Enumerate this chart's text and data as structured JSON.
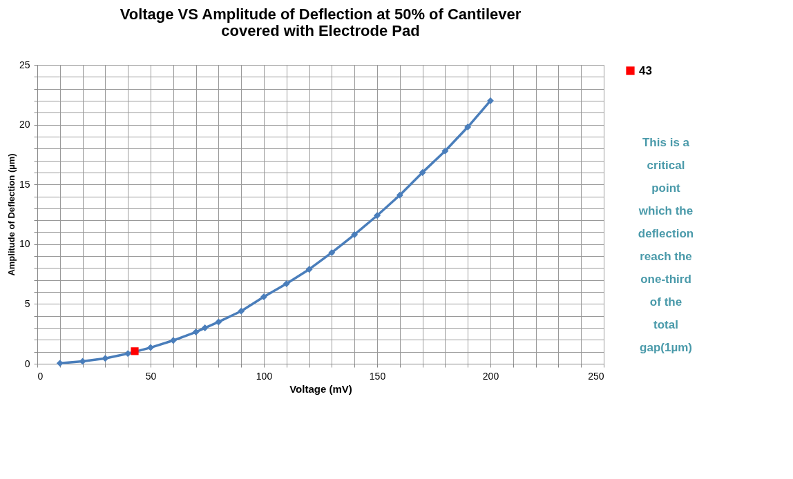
{
  "chart_data": {
    "type": "line",
    "title": "Voltage VS Amplitude of Deflection at 50% of Cantilever covered with Electrode Pad",
    "xlabel": "Voltage (mV)",
    "ylabel": "Amplitude of Deflection  (µm)",
    "series": [
      {
        "color": "#4a7ebb",
        "marker": "diamond",
        "x": [
          10,
          20,
          30,
          40,
          50,
          60,
          70,
          74,
          80,
          90,
          100,
          110,
          120,
          130,
          140,
          150,
          160,
          170,
          180,
          190,
          200
        ],
        "values": [
          0.05,
          0.2,
          0.45,
          0.85,
          1.35,
          1.95,
          2.65,
          3.0,
          3.5,
          4.4,
          5.6,
          6.7,
          7.9,
          9.3,
          10.8,
          12.4,
          14.1,
          16.0,
          17.8,
          19.8,
          22.0
        ]
      },
      {
        "name": "43",
        "type": "scatter",
        "color": "#ff0000",
        "marker": "square",
        "x": [
          43
        ],
        "values": [
          1.05
        ]
      }
    ],
    "xlim": [
      0,
      250
    ],
    "ylim": [
      0,
      25
    ],
    "xticks": [
      0,
      {
        "value": 10,
        "label": null
      },
      {
        "value": 20,
        "label": null
      },
      {
        "value": 30,
        "label": null
      },
      {
        "value": 40,
        "label": null
      },
      50,
      {
        "value": 60,
        "label": null
      },
      {
        "value": 70,
        "label": null
      },
      {
        "value": 80,
        "label": null
      },
      {
        "value": 90,
        "label": null
      },
      100,
      {
        "value": 110,
        "label": null
      },
      {
        "value": 120,
        "label": null
      },
      {
        "value": 130,
        "label": null
      },
      {
        "value": 140,
        "label": null
      },
      150,
      {
        "value": 160,
        "label": null
      },
      {
        "value": 170,
        "label": null
      },
      {
        "value": 180,
        "label": null
      },
      {
        "value": 190,
        "label": null
      },
      200,
      {
        "value": 210,
        "label": null
      },
      {
        "value": 220,
        "label": null
      },
      {
        "value": 230,
        "label": null
      },
      {
        "value": 240,
        "label": null
      },
      250
    ],
    "yticks": [
      0,
      {
        "value": 1,
        "label": null
      },
      {
        "value": 2,
        "label": null
      },
      {
        "value": 3,
        "label": null
      },
      {
        "value": 4,
        "label": null
      },
      5,
      {
        "value": 6,
        "label": null
      },
      {
        "value": 7,
        "label": null
      },
      {
        "value": 8,
        "label": null
      },
      {
        "value": 9,
        "label": null
      },
      10,
      {
        "value": 11,
        "label": null
      },
      {
        "value": 12,
        "label": null
      },
      {
        "value": 13,
        "label": null
      },
      {
        "value": 14,
        "label": null
      },
      15,
      {
        "value": 16,
        "label": null
      },
      {
        "value": 17,
        "label": null
      },
      {
        "value": 18,
        "label": null
      },
      {
        "value": 19,
        "label": null
      },
      20,
      {
        "value": 21,
        "label": null
      },
      {
        "value": 22,
        "label": null
      },
      {
        "value": 23,
        "label": null
      },
      {
        "value": 24,
        "label": null
      },
      25
    ],
    "grid": true,
    "legend": "right",
    "line_style": "solid",
    "annotations": [
      "This  is a critical point which the deflection reach the one-third of the total gap(1µm)"
    ]
  }
}
